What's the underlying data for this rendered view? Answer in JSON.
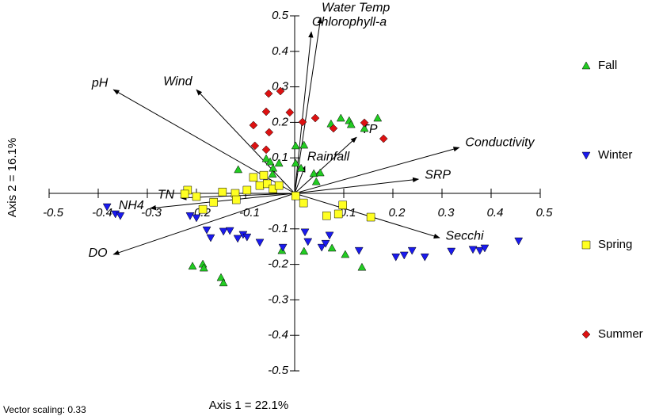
{
  "chart_data": {
    "type": "scatter",
    "x_label": "Axis 1 = 22.1%",
    "y_label": "Axis 2 = 16.1%",
    "footnote": "Vector scaling: 0.33",
    "xlim": [
      -0.5,
      0.5
    ],
    "ylim": [
      -0.5,
      0.5
    ],
    "xticks": [
      -0.5,
      -0.4,
      -0.3,
      -0.2,
      -0.1,
      0.1,
      0.2,
      0.3,
      0.4,
      0.5
    ],
    "yticks": [
      -0.5,
      -0.4,
      -0.3,
      -0.2,
      -0.1,
      0.1,
      0.2,
      0.3,
      0.4,
      0.5
    ],
    "series": [
      {
        "name": "Fall",
        "color": "#22cc22",
        "marker": "triangle-up",
        "x": [
          -0.208,
          -0.187,
          -0.185,
          -0.15,
          -0.145,
          -0.115,
          -0.058,
          -0.05,
          -0.044,
          -0.032,
          -0.045,
          0.002,
          0.002,
          0.013,
          0.019,
          0.039,
          0.044,
          0.052,
          0.074,
          0.094,
          0.111,
          0.115,
          0.169,
          0.142,
          0.019,
          -0.026,
          0.103,
          0.076,
          0.137
        ],
        "values": [
          -0.205,
          -0.199,
          -0.21,
          -0.237,
          -0.252,
          0.067,
          0.098,
          0.089,
          0.071,
          0.085,
          0.054,
          0.134,
          0.085,
          0.071,
          0.136,
          0.056,
          0.033,
          0.058,
          0.196,
          0.212,
          0.205,
          0.194,
          0.212,
          0.183,
          -0.163,
          -0.161,
          -0.172,
          -0.154,
          -0.208
        ]
      },
      {
        "name": "Winter",
        "color": "#1a1aee",
        "marker": "triangle-down",
        "x": [
          -0.382,
          -0.365,
          -0.355,
          -0.213,
          -0.2,
          -0.179,
          -0.171,
          -0.145,
          -0.132,
          -0.116,
          -0.105,
          -0.097,
          -0.071,
          -0.024,
          0.021,
          0.027,
          0.055,
          0.063,
          0.071,
          0.131,
          0.206,
          0.223,
          0.239,
          0.265,
          0.319,
          0.363,
          0.377,
          0.387,
          0.456
        ],
        "values": [
          -0.038,
          -0.058,
          -0.063,
          -0.063,
          -0.069,
          -0.103,
          -0.125,
          -0.107,
          -0.105,
          -0.127,
          -0.116,
          -0.123,
          -0.138,
          -0.152,
          -0.109,
          -0.136,
          -0.152,
          -0.141,
          -0.118,
          -0.161,
          -0.179,
          -0.174,
          -0.161,
          -0.179,
          -0.163,
          -0.158,
          -0.161,
          -0.154,
          -0.134
        ]
      },
      {
        "name": "Spring",
        "color": "#ffff22",
        "marker": "square",
        "x": [
          -0.218,
          -0.2,
          -0.187,
          -0.165,
          -0.224,
          -0.147,
          -0.121,
          -0.119,
          -0.097,
          -0.084,
          -0.071,
          -0.063,
          -0.056,
          -0.044,
          -0.032,
          0.002,
          0.018,
          0.065,
          0.089,
          0.098,
          0.155
        ],
        "values": [
          0.009,
          -0.009,
          -0.045,
          -0.025,
          -0.002,
          0.004,
          0,
          -0.018,
          0.009,
          0.045,
          0.022,
          0.051,
          0.027,
          0.013,
          0.022,
          -0.007,
          -0.027,
          -0.063,
          -0.058,
          -0.033,
          -0.067
        ]
      },
      {
        "name": "Summer",
        "color": "#dd1111",
        "marker": "diamond",
        "x": [
          -0.058,
          -0.029,
          -0.01,
          -0.084,
          -0.081,
          -0.052,
          -0.058,
          0.016,
          0.042,
          0.079,
          0.142,
          0.181,
          -0.053
        ],
        "values": [
          0.23,
          0.288,
          0.228,
          0.192,
          0.134,
          0.172,
          0.123,
          0.201,
          0.212,
          0.183,
          0.199,
          0.154,
          0.281
        ]
      }
    ],
    "vectors": [
      {
        "name": "Water Temp",
        "x": 0.053,
        "y": 0.495
      },
      {
        "name": "Chlorophyll-a",
        "x": 0.034,
        "y": 0.455
      },
      {
        "name": "pH",
        "x": -0.369,
        "y": 0.292
      },
      {
        "name": "Wind",
        "x": -0.2,
        "y": 0.292
      },
      {
        "name": "TP",
        "x": 0.126,
        "y": 0.158
      },
      {
        "name": "Conductivity",
        "x": 0.335,
        "y": 0.129
      },
      {
        "name": "Rainfall",
        "x": 0.021,
        "y": 0.076
      },
      {
        "name": "SRP",
        "x": 0.252,
        "y": 0.04
      },
      {
        "name": "Secchi",
        "x": 0.295,
        "y": -0.125
      },
      {
        "name": "TN",
        "x": -0.232,
        "y": -0.013
      },
      {
        "name": "NH4",
        "x": -0.294,
        "y": -0.042
      },
      {
        "name": "DO",
        "x": -0.369,
        "y": -0.172
      }
    ]
  }
}
